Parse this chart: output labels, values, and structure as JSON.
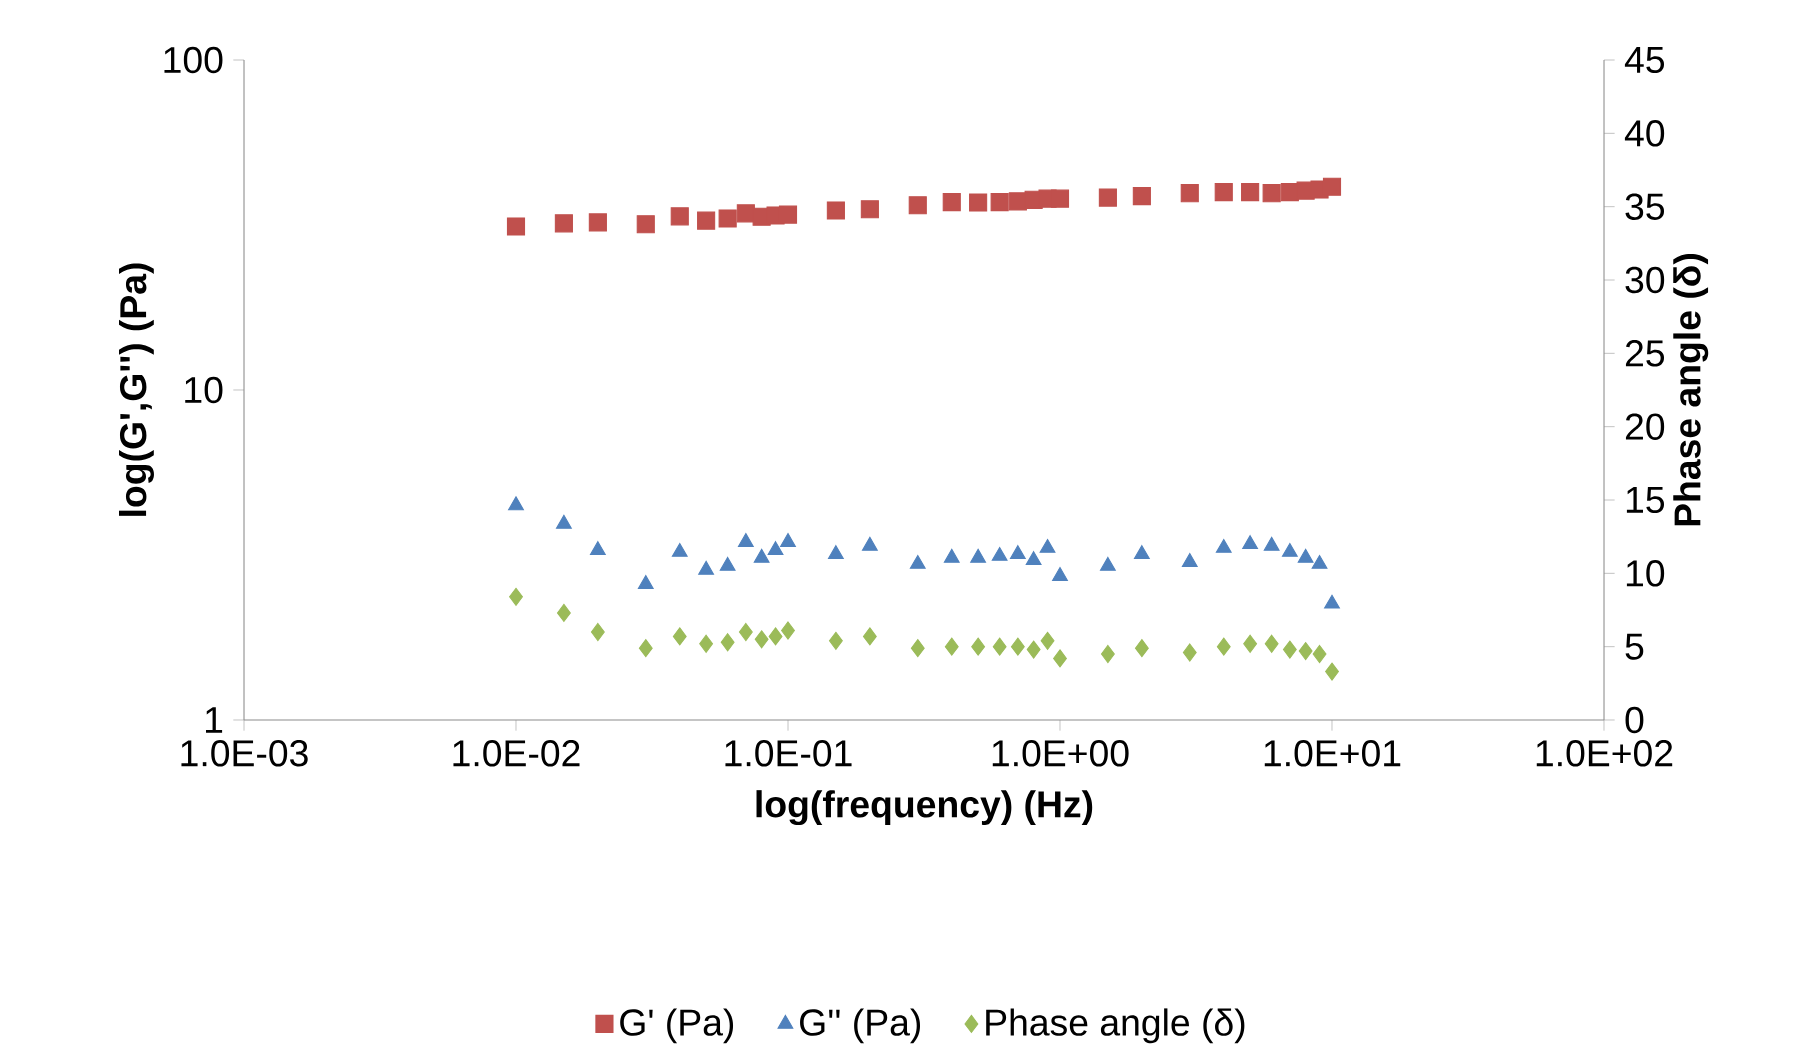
{
  "chart_data": {
    "type": "scatter",
    "x": [
      0.01,
      0.015,
      0.02,
      0.03,
      0.04,
      0.05,
      0.06,
      0.07,
      0.08,
      0.09,
      0.1,
      0.15,
      0.2,
      0.3,
      0.4,
      0.5,
      0.6,
      0.7,
      0.8,
      0.9,
      1,
      1.5,
      2,
      3,
      4,
      5,
      6,
      7,
      8,
      9,
      10
    ],
    "series": [
      {
        "name": "G' (Pa)",
        "color": "#c0504d",
        "marker": "square",
        "values": [
          31.3,
          32.0,
          32.2,
          31.8,
          33.6,
          32.6,
          33.1,
          34.3,
          33.5,
          33.8,
          34.0,
          35.0,
          35.3,
          36.3,
          37.1,
          37.0,
          37.1,
          37.3,
          37.7,
          38.0,
          38.0,
          38.3,
          38.7,
          39.5,
          39.8,
          39.8,
          39.5,
          39.8,
          40.2,
          40.5,
          41.3
        ]
      },
      {
        "name": "G'' (Pa)",
        "color": "#4f81bd",
        "marker": "triangle",
        "values": [
          4.47,
          3.93,
          3.27,
          2.58,
          3.23,
          2.85,
          2.93,
          3.46,
          3.1,
          3.27,
          3.46,
          3.18,
          3.37,
          2.97,
          3.1,
          3.1,
          3.14,
          3.18,
          3.05,
          3.32,
          2.73,
          2.93,
          3.18,
          3.01,
          3.32,
          3.41,
          3.37,
          3.23,
          3.1,
          2.97,
          2.25
        ]
      },
      {
        "name": "Phase angle (δ)",
        "color": "#9bbb59",
        "marker": "diamond",
        "axis": "y2",
        "values": [
          8.4,
          7.3,
          6.0,
          4.9,
          5.7,
          5.2,
          5.3,
          6.0,
          5.5,
          5.7,
          6.1,
          5.4,
          5.7,
          4.9,
          5.0,
          5.0,
          5.0,
          5.0,
          4.8,
          5.4,
          4.2,
          4.5,
          4.9,
          4.6,
          5.0,
          5.2,
          5.2,
          4.8,
          4.7,
          4.5,
          3.3
        ]
      }
    ],
    "xlabel": "log(frequency) (Hz)",
    "ylabel": "log(G',G'') (Pa)",
    "y2label": "Phase angle (δ)",
    "log": "xy",
    "xlim": [
      0.001,
      100
    ],
    "xticks": [
      {
        "value": 0.001,
        "label": "1.0E-03"
      },
      {
        "value": 0.01,
        "label": "1.0E-02"
      },
      {
        "value": 0.1,
        "label": "1.0E-01"
      },
      {
        "value": 1,
        "label": "1.0E+00"
      },
      {
        "value": 10,
        "label": "1.0E+01"
      },
      {
        "value": 100,
        "label": "1.0E+02"
      }
    ],
    "ylim": [
      1,
      100
    ],
    "yticks": [
      1,
      10,
      100
    ],
    "y2lim": [
      0,
      45
    ],
    "y2ticks": [
      0,
      5,
      10,
      15,
      20,
      25,
      30,
      35,
      40,
      45
    ],
    "grid": false,
    "legend": "bottom"
  }
}
